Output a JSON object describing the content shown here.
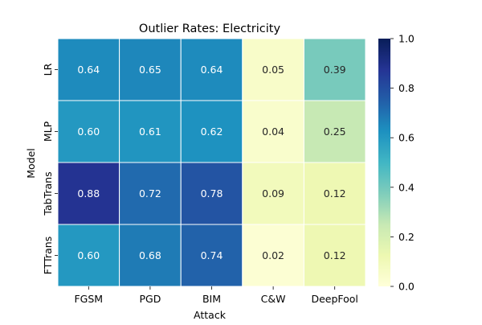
{
  "chart_data": {
    "type": "heatmap",
    "title": "Outlier Rates: Electricity",
    "xlabel": "Attack",
    "ylabel": "Model",
    "x_categories": [
      "FGSM",
      "PGD",
      "BIM",
      "C&W",
      "DeepFool"
    ],
    "y_categories": [
      "LR",
      "MLP",
      "TabTrans",
      "FTTrans"
    ],
    "values": [
      [
        0.64,
        0.65,
        0.64,
        0.05,
        0.39
      ],
      [
        0.6,
        0.61,
        0.62,
        0.04,
        0.25
      ],
      [
        0.88,
        0.72,
        0.78,
        0.09,
        0.12
      ],
      [
        0.6,
        0.68,
        0.74,
        0.02,
        0.12
      ]
    ],
    "colormap": "YlGnBu",
    "vmin": 0.0,
    "vmax": 1.0,
    "colorbar_ticks": [
      "0.0",
      "0.2",
      "0.4",
      "0.6",
      "0.8",
      "1.0"
    ],
    "annotations": true,
    "grid": false
  }
}
